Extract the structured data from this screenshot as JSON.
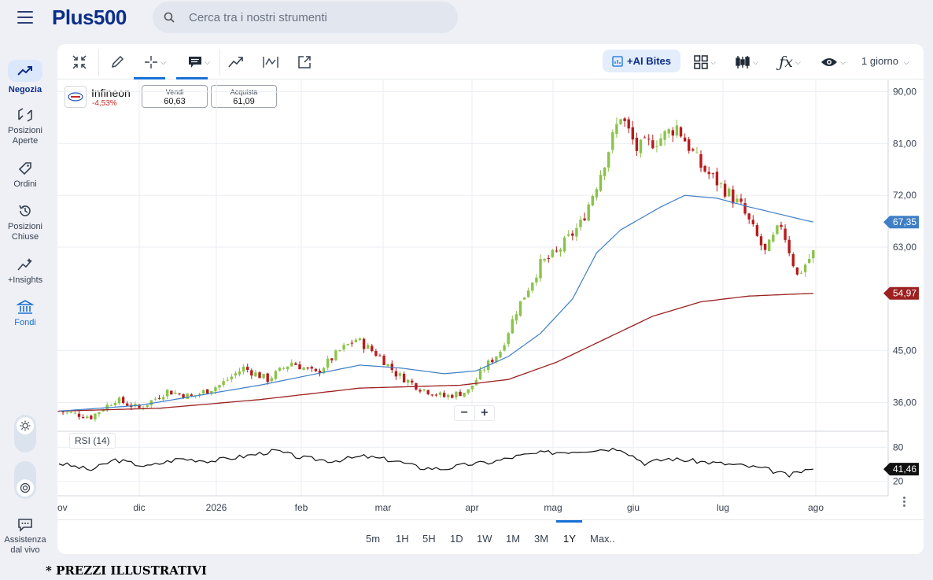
{
  "header": {
    "logo_text": "Plus500",
    "search_placeholder": "Cerca tra i nostri strumenti"
  },
  "sidebar": {
    "items": [
      {
        "label": "Negozia",
        "icon": "trend-up-icon"
      },
      {
        "label": "Posizioni Aperte",
        "icon": "open-positions-icon"
      },
      {
        "label": "Ordini",
        "icon": "tag-icon"
      },
      {
        "label": "Posizioni Chiuse",
        "icon": "history-icon"
      },
      {
        "label": "+Insights",
        "icon": "sparkle-chart-icon"
      },
      {
        "label": "Fondi",
        "icon": "bank-icon"
      },
      {
        "label": "Assistenza dal vivo",
        "icon": "chat-icon"
      }
    ]
  },
  "toolbar": {
    "ai_label": "+AI Bites",
    "period_label": "1 giorno"
  },
  "instrument": {
    "name": "Infineon",
    "change": "-4,53%",
    "sell_label": "Vendi",
    "sell_price": "60,63",
    "buy_label": "Acquista",
    "buy_price": "61,09"
  },
  "indicator": {
    "label": "RSI (14)"
  },
  "ranges": [
    "5m",
    "1H",
    "5H",
    "1D",
    "1W",
    "1M",
    "3M",
    "1Y",
    "Max.."
  ],
  "selected_range": "1Y",
  "disclaimer": "* PREZZI ILLUSTRATIVI",
  "colors": {
    "up": "#8bc34a",
    "down": "#b71c1c",
    "ma_fast": "#3f7fc5",
    "ma_slow": "#9c2020",
    "accent": "#1670d8",
    "brand": "#0b2e8a"
  },
  "chart_data": {
    "type": "candlestick",
    "ylim": [
      31,
      92
    ],
    "y_ticks": [
      "90,00",
      "81,00",
      "72,00",
      "63,00",
      "45,00",
      "36,00"
    ],
    "x_ticks": [
      "ov",
      "dic",
      "2026",
      "feb",
      "mar",
      "apr",
      "mag",
      "giu",
      "lug",
      "ago"
    ],
    "ma_fast_last": "67,35",
    "ma_slow_last": "54,97",
    "candle_close_anchors": [
      [
        0,
        34.5
      ],
      [
        8,
        33.5
      ],
      [
        14,
        36.5
      ],
      [
        20,
        35
      ],
      [
        27,
        38
      ],
      [
        33,
        37
      ],
      [
        40,
        39
      ],
      [
        46,
        42
      ],
      [
        52,
        40
      ],
      [
        58,
        43
      ],
      [
        64,
        41
      ],
      [
        70,
        45
      ],
      [
        74,
        47
      ],
      [
        80,
        44
      ],
      [
        84,
        41
      ],
      [
        90,
        38.5
      ],
      [
        96,
        37
      ],
      [
        102,
        38
      ],
      [
        106,
        42
      ],
      [
        110,
        45
      ],
      [
        114,
        52
      ],
      [
        120,
        60
      ],
      [
        124,
        62
      ],
      [
        130,
        67
      ],
      [
        134,
        74
      ],
      [
        140,
        86
      ],
      [
        144,
        80
      ],
      [
        150,
        82
      ],
      [
        154,
        84
      ],
      [
        160,
        77
      ],
      [
        166,
        73
      ],
      [
        170,
        70
      ],
      [
        176,
        62
      ],
      [
        180,
        67
      ],
      [
        184,
        58
      ],
      [
        188,
        62
      ]
    ],
    "ma_fast_anchors": [
      [
        0,
        34.5
      ],
      [
        20,
        35.5
      ],
      [
        50,
        39
      ],
      [
        75,
        42.5
      ],
      [
        85,
        42
      ],
      [
        96,
        41
      ],
      [
        104,
        41.5
      ],
      [
        112,
        44
      ],
      [
        120,
        48
      ],
      [
        128,
        54
      ],
      [
        134,
        62
      ],
      [
        140,
        66
      ],
      [
        150,
        70
      ],
      [
        156,
        72
      ],
      [
        164,
        71.5
      ],
      [
        172,
        70
      ],
      [
        178,
        69
      ],
      [
        184,
        68
      ],
      [
        188,
        67.35
      ]
    ],
    "ma_slow_anchors": [
      [
        0,
        34.5
      ],
      [
        25,
        35
      ],
      [
        50,
        36.5
      ],
      [
        75,
        38.5
      ],
      [
        100,
        39
      ],
      [
        112,
        40
      ],
      [
        124,
        43
      ],
      [
        136,
        47
      ],
      [
        148,
        51
      ],
      [
        160,
        53.5
      ],
      [
        172,
        54.5
      ],
      [
        188,
        54.97
      ]
    ],
    "rsi_ticks": [
      "80",
      "20"
    ],
    "rsi_last": "41,46",
    "rsi_anchors": [
      [
        0,
        52
      ],
      [
        8,
        40
      ],
      [
        14,
        58
      ],
      [
        22,
        46
      ],
      [
        30,
        60
      ],
      [
        38,
        56
      ],
      [
        46,
        64
      ],
      [
        54,
        74
      ],
      [
        60,
        62
      ],
      [
        68,
        56
      ],
      [
        76,
        64
      ],
      [
        84,
        56
      ],
      [
        90,
        44
      ],
      [
        96,
        42
      ],
      [
        102,
        50
      ],
      [
        108,
        54
      ],
      [
        114,
        64
      ],
      [
        120,
        70
      ],
      [
        126,
        72
      ],
      [
        134,
        76
      ],
      [
        140,
        78
      ],
      [
        146,
        52
      ],
      [
        152,
        60
      ],
      [
        158,
        56
      ],
      [
        164,
        52
      ],
      [
        170,
        48
      ],
      [
        176,
        42
      ],
      [
        182,
        30
      ],
      [
        186,
        40
      ],
      [
        188,
        41.46
      ]
    ]
  }
}
